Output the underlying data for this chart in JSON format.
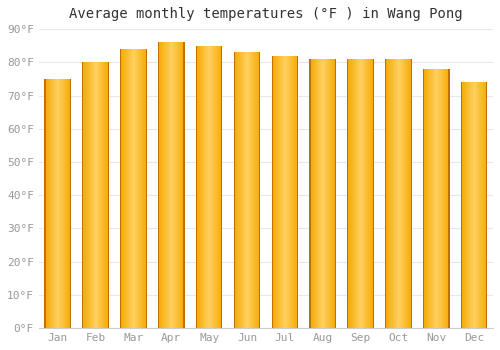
{
  "title": "Average monthly temperatures (°F ) in Wang Pong",
  "months": [
    "Jan",
    "Feb",
    "Mar",
    "Apr",
    "May",
    "Jun",
    "Jul",
    "Aug",
    "Sep",
    "Oct",
    "Nov",
    "Dec"
  ],
  "values": [
    75,
    80,
    84,
    86,
    85,
    83,
    82,
    81,
    81,
    81,
    78,
    74
  ],
  "bar_color_left": "#F5A800",
  "bar_color_center": "#FFD060",
  "bar_color_right": "#E08800",
  "ylim": [
    0,
    90
  ],
  "yticks": [
    0,
    10,
    20,
    30,
    40,
    50,
    60,
    70,
    80,
    90
  ],
  "ytick_labels": [
    "0°F",
    "10°F",
    "20°F",
    "30°F",
    "40°F",
    "50°F",
    "60°F",
    "70°F",
    "80°F",
    "90°F"
  ],
  "background_color": "#ffffff",
  "plot_bg_color": "#ffffff",
  "grid_color": "#e8e8e8",
  "title_fontsize": 10,
  "tick_fontsize": 8,
  "tick_color": "#999999",
  "title_color": "#333333"
}
